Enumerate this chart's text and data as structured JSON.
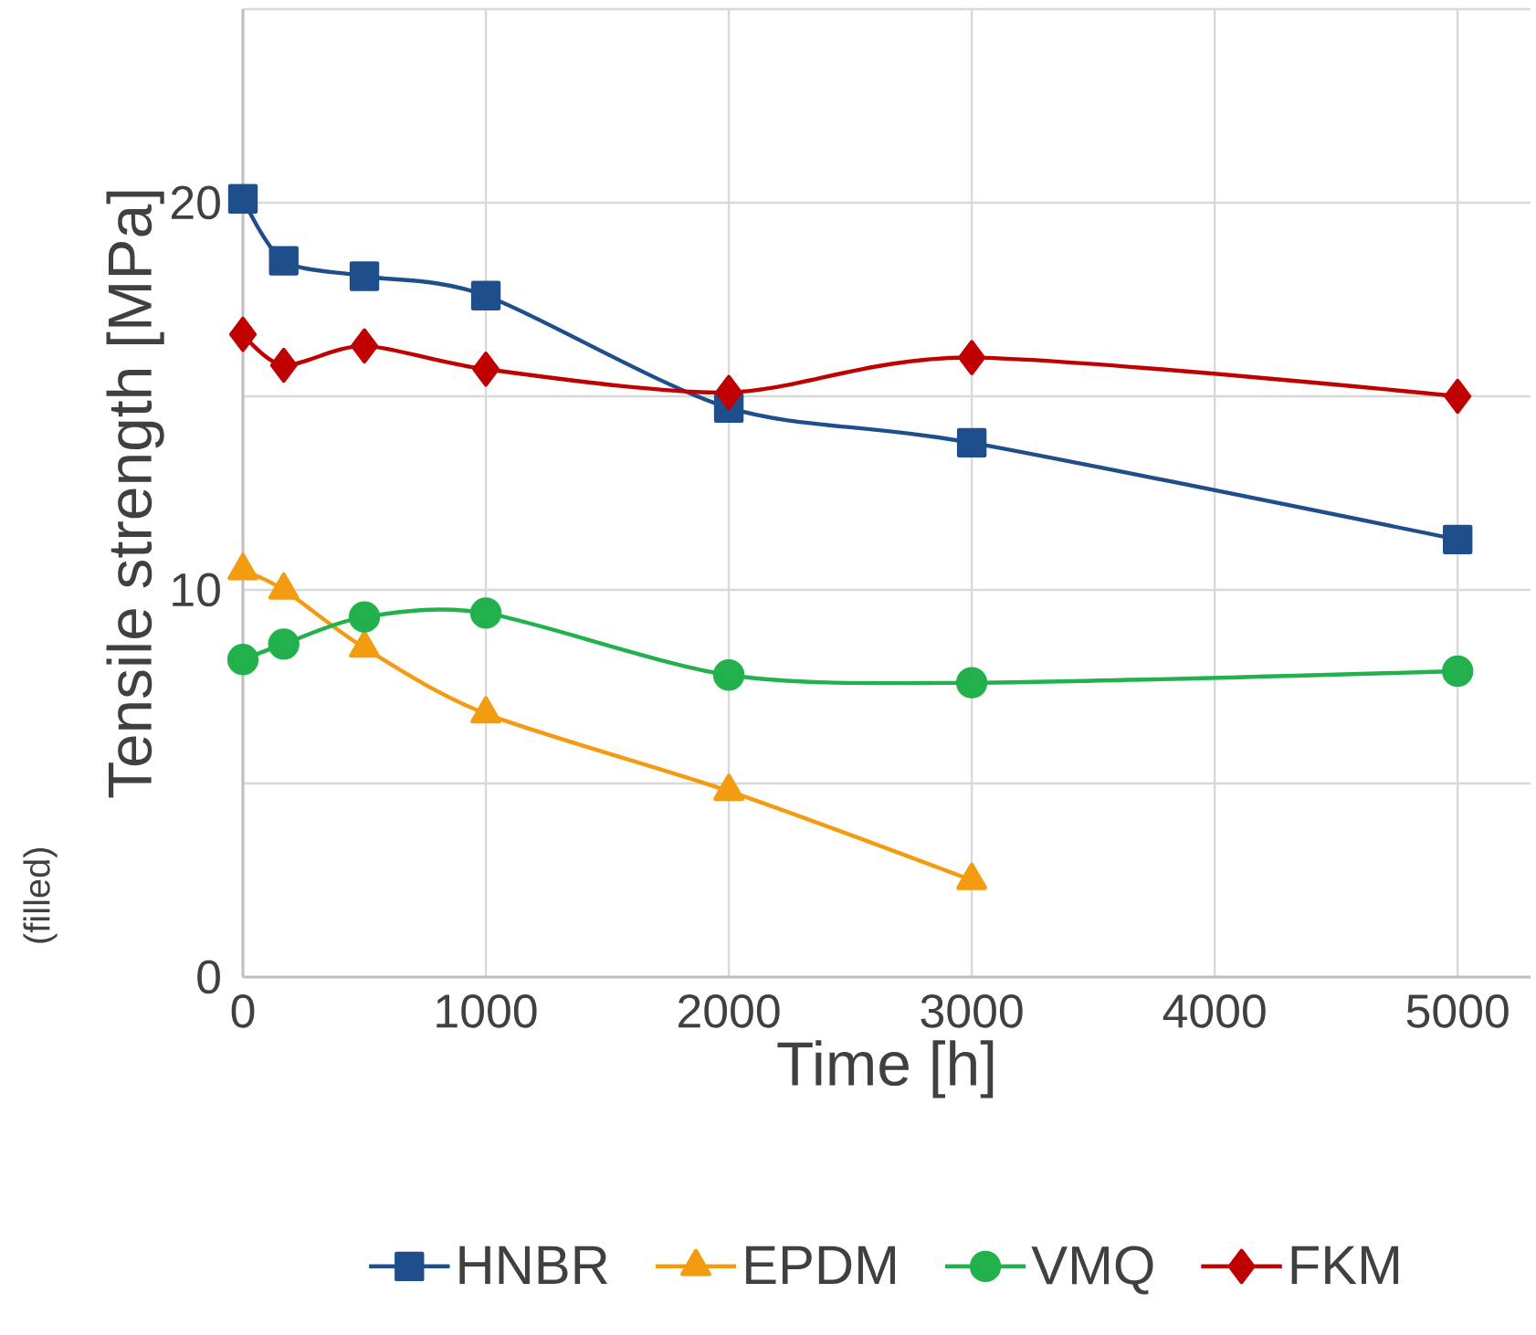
{
  "chart_data": {
    "type": "line",
    "xlabel": "Time [h]",
    "ylabel": "Tensile strength [MPa]",
    "annotations": [
      "(filled)"
    ],
    "xlim": [
      0,
      5300
    ],
    "ylim": [
      0,
      25
    ],
    "xticks": [
      0,
      1000,
      2000,
      3000,
      4000,
      5000
    ],
    "yticks": [
      0,
      {
        "value": 5,
        "label": null
      },
      10,
      {
        "value": 15,
        "label": null
      },
      20,
      {
        "value": 25,
        "label": null
      }
    ],
    "grid": true,
    "legend": "bottom",
    "line_style": "solid",
    "series": [
      {
        "name": "HNBR",
        "color": "#1f4e8c",
        "marker": "square",
        "x": [
          0,
          168,
          500,
          1000,
          2000,
          3000,
          5000
        ],
        "values": [
          20.1,
          18.5,
          18.1,
          17.6,
          14.7,
          13.8,
          11.3
        ]
      },
      {
        "name": "EPDM",
        "color": "#f39c12",
        "marker": "triangle",
        "x": [
          0,
          168,
          500,
          1000,
          2000,
          3000
        ],
        "values": [
          10.5,
          10.0,
          8.5,
          6.8,
          4.8,
          2.5
        ]
      },
      {
        "name": "VMQ",
        "color": "#22b14c",
        "marker": "circle",
        "x": [
          0,
          168,
          500,
          1000,
          2000,
          3000,
          5000
        ],
        "values": [
          8.2,
          8.6,
          9.3,
          9.4,
          7.8,
          7.6,
          7.9
        ]
      },
      {
        "name": "FKM",
        "color": "#c00000",
        "marker": "diamond",
        "x": [
          0,
          168,
          500,
          1000,
          2000,
          3000,
          5000
        ],
        "values": [
          16.6,
          15.8,
          16.3,
          15.7,
          15.1,
          16.0,
          15.0
        ]
      }
    ]
  }
}
